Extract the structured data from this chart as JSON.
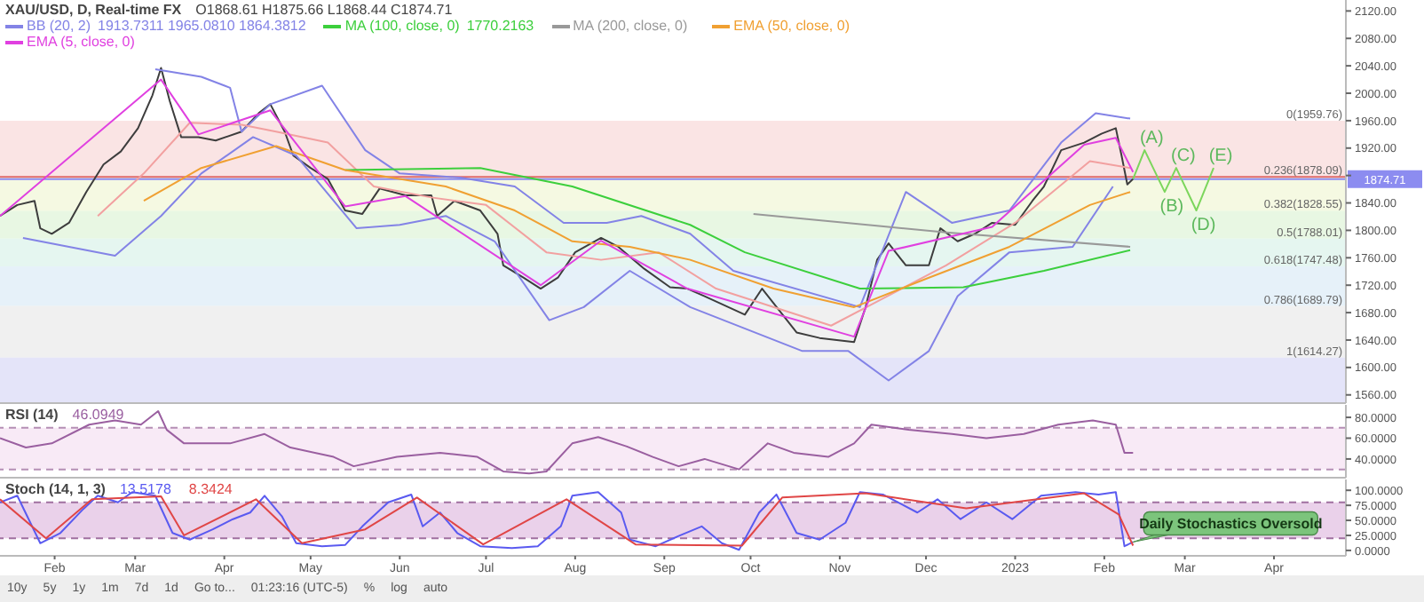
{
  "chart_data": [
    {
      "type": "line",
      "title": "XAU/USD, D, Real-time FX",
      "subtitle": "O1868.61 H1875.66 L1868.44 C1874.71",
      "legend": "top left",
      "tick_labels": "y",
      "xlim": [
        "2022-01-13",
        "2023-04-26"
      ],
      "ylim": [
        1548,
        2136
      ],
      "yticks": [
        {
          "value": 1560,
          "label": "1560.00"
        },
        {
          "value": 1600,
          "label": "1600.00"
        },
        {
          "value": 1640,
          "label": "1640.00"
        },
        {
          "value": 1680,
          "label": "1680.00"
        },
        {
          "value": 1720,
          "label": "1720.00"
        },
        {
          "value": 1760,
          "label": "1760.00"
        },
        {
          "value": 1800,
          "label": "1800.00"
        },
        {
          "value": 1840,
          "label": "1840.00"
        },
        {
          "value": 1880,
          "label": null
        },
        {
          "value": 1920,
          "label": "1920.00"
        },
        {
          "value": 1960,
          "label": "1960.00"
        },
        {
          "value": 2000,
          "label": "2000.00"
        },
        {
          "value": 2040,
          "label": "2040.00"
        },
        {
          "value": 2080,
          "label": "2080.00"
        },
        {
          "value": 2120,
          "label": "2120.00"
        }
      ],
      "bands": [
        {
          "axis": "y",
          "from": 1878.09,
          "to": 1959.76,
          "label": "0(1959.76)",
          "color": "#f7d2d2"
        },
        {
          "axis": "y",
          "from": 1828.55,
          "to": 1878.09,
          "label": "0.236(1878.09)",
          "color": "#eef5cf"
        },
        {
          "axis": "y",
          "from": 1788.01,
          "to": 1828.55,
          "label": "0.382(1828.55)",
          "color": "#d9f2d0"
        },
        {
          "axis": "y",
          "from": 1747.48,
          "to": 1788.01,
          "label": "0.5(1788.01)",
          "color": "#d4f0e6"
        },
        {
          "axis": "y",
          "from": 1689.79,
          "to": 1747.48,
          "label": "0.618(1747.48)",
          "color": "#d5e8f5"
        },
        {
          "axis": "y",
          "from": 1614.27,
          "to": 1689.79,
          "label": "0.786(1689.79)",
          "color": "#e6e6e6"
        },
        {
          "axis": "y",
          "from": 1548,
          "to": 1614.27,
          "label": "1(1614.27)",
          "color": "#d2d2f5"
        }
      ],
      "ref_lines": [
        {
          "axis": "y",
          "value": 1878.09,
          "color": "#e06a6a"
        },
        {
          "axis": "y",
          "value": 1874.71,
          "label": "1874.71",
          "color": "#8c8cf0"
        }
      ],
      "annotations": [
        "1913.7311 1965.0810 1864.3812",
        "1770.2163",
        {
          "text": "(A)",
          "x": "2023-02-15",
          "y": 1917
        },
        {
          "text": "(B)",
          "x": "2023-02-22",
          "y": 1856
        },
        {
          "text": "(C)",
          "x": "2023-02-26",
          "y": 1891
        },
        {
          "text": "(D)",
          "x": "2023-03-05",
          "y": 1829
        },
        {
          "text": "(E)",
          "x": "2023-03-11",
          "y": 1891
        }
      ],
      "series": [
        {
          "color": "#3d3d3d",
          "x": [
            "2022-01-13",
            "2022-01-19",
            "2022-01-25",
            "2022-01-27",
            "2022-01-31",
            "2022-02-06",
            "2022-02-12",
            "2022-02-18",
            "2022-02-24",
            "2022-03-02",
            "2022-03-07",
            "2022-03-10",
            "2022-03-13",
            "2022-03-17",
            "2022-03-23",
            "2022-03-29",
            "2022-04-07",
            "2022-04-13",
            "2022-04-17",
            "2022-04-22",
            "2022-04-25",
            "2022-05-01",
            "2022-05-07",
            "2022-05-13",
            "2022-05-19",
            "2022-05-25",
            "2022-06-03",
            "2022-06-12",
            "2022-06-14",
            "2022-06-20",
            "2022-06-29",
            "2022-07-05",
            "2022-07-07",
            "2022-07-14",
            "2022-07-20",
            "2022-07-26",
            "2022-08-01",
            "2022-08-10",
            "2022-08-16",
            "2022-08-25",
            "2022-09-03",
            "2022-09-09",
            "2022-09-15",
            "2022-09-29",
            "2022-10-05",
            "2022-10-17",
            "2022-10-25",
            "2022-11-06",
            "2022-11-10",
            "2022-11-14",
            "2022-11-18",
            "2022-11-24",
            "2022-12-02",
            "2022-12-06",
            "2022-12-12",
            "2022-12-18",
            "2022-12-24",
            "2023-01-01",
            "2023-01-07",
            "2023-01-11",
            "2023-01-17",
            "2023-01-25",
            "2023-01-31",
            "2023-02-05",
            "2023-02-07",
            "2023-02-09",
            "2023-02-11"
          ],
          "values": [
            1821,
            1837,
            1843,
            1803,
            1795,
            1811,
            1856,
            1896,
            1915,
            1949,
            1997,
            2037,
            1989,
            1936,
            1936,
            1931,
            1944,
            1971,
            1984,
            1944,
            1909,
            1891,
            1875,
            1829,
            1824,
            1861,
            1851,
            1851,
            1821,
            1843,
            1829,
            1795,
            1749,
            1731,
            1715,
            1731,
            1768,
            1789,
            1776,
            1744,
            1717,
            1715,
            1704,
            1677,
            1715,
            1651,
            1643,
            1637,
            1688,
            1757,
            1781,
            1749,
            1749,
            1803,
            1784,
            1795,
            1811,
            1808,
            1843,
            1864,
            1917,
            1928,
            1941,
            1949,
            1909,
            1867,
            1875
          ]
        },
        {
          "name": "BB (20, 2)",
          "color": "#8383e6",
          "x": [
            "2022-03-08",
            "2022-03-24",
            "2022-04-03",
            "2022-04-07",
            "2022-04-17",
            "2022-05-05",
            "2022-05-20",
            "2022-06-01",
            "2022-06-22",
            "2022-07-11",
            "2022-07-28",
            "2022-08-12",
            "2022-08-24",
            "2022-09-10",
            "2022-09-25",
            "2022-11-08",
            "2022-11-24",
            "2022-12-10",
            "2022-12-30",
            "2023-01-17",
            "2023-01-29",
            "2023-02-10"
          ],
          "values": [
            2035,
            2024,
            2008,
            1944,
            1984,
            2011,
            1917,
            1883,
            1877,
            1864,
            1811,
            1811,
            1821,
            1795,
            1741,
            1688,
            1856,
            1811,
            1829,
            1928,
            1971,
            1963
          ]
        },
        {
          "color": "#8383e6",
          "x": [
            "2022-01-21",
            "2022-02-22",
            "2022-03-10",
            "2022-03-24",
            "2022-04-11",
            "2022-04-26",
            "2022-05-17",
            "2022-06-01",
            "2022-06-17",
            "2022-07-04",
            "2022-07-23",
            "2022-08-04",
            "2022-08-20",
            "2022-09-10",
            "2022-10-19",
            "2022-11-04",
            "2022-11-18",
            "2022-12-02",
            "2022-12-12",
            "2022-12-30",
            "2023-01-21",
            "2023-02-04"
          ],
          "values": [
            1789,
            1763,
            1821,
            1883,
            1936,
            1909,
            1803,
            1808,
            1821,
            1784,
            1669,
            1688,
            1741,
            1688,
            1624,
            1624,
            1581,
            1624,
            1704,
            1768,
            1776,
            1864
          ]
        },
        {
          "color": "#f2a0a0",
          "x": [
            "2022-02-16",
            "2022-03-04",
            "2022-03-20",
            "2022-04-07",
            "2022-04-19",
            "2022-05-07",
            "2022-05-23",
            "2022-06-12",
            "2022-07-01",
            "2022-07-22",
            "2022-08-10",
            "2022-08-30",
            "2022-09-19",
            "2022-10-29",
            "2022-11-14",
            "2022-12-08",
            "2023-01-01",
            "2023-01-27",
            "2023-02-10"
          ],
          "values": [
            1821,
            1883,
            1957,
            1954,
            1944,
            1928,
            1864,
            1848,
            1837,
            1768,
            1757,
            1768,
            1715,
            1661,
            1696,
            1749,
            1811,
            1901,
            1891
          ]
        },
        {
          "name": "MA (100, close, 0)",
          "color": "#3ccf3c",
          "x": [
            "2022-05-13",
            "2022-06-29",
            "2022-07-31",
            "2022-09-10",
            "2022-09-29",
            "2022-11-08",
            "2022-12-14",
            "2023-01-11",
            "2023-02-10"
          ],
          "values": [
            1888,
            1891,
            1864,
            1808,
            1768,
            1715,
            1717,
            1741,
            1771
          ]
        },
        {
          "name": "MA (200, close, 0)",
          "color": "#999999",
          "x": [
            "2022-10-02",
            "2022-12-08",
            "2023-02-10"
          ],
          "values": [
            1824,
            1797,
            1776
          ]
        },
        {
          "name": "EMA (50, close, 0)",
          "color": "#f0a032",
          "x": [
            "2022-03-04",
            "2022-03-24",
            "2022-04-19",
            "2022-05-13",
            "2022-06-17",
            "2022-07-11",
            "2022-07-31",
            "2022-08-20",
            "2022-09-10",
            "2022-10-09",
            "2022-11-06",
            "2022-12-02",
            "2022-12-30",
            "2023-01-27",
            "2023-02-10"
          ],
          "values": [
            1843,
            1891,
            1923,
            1888,
            1864,
            1829,
            1784,
            1776,
            1757,
            1715,
            1688,
            1731,
            1776,
            1837,
            1856
          ]
        },
        {
          "name": "EMA (5, close, 0)",
          "color": "#e040e0",
          "x": [
            "2022-01-13",
            "2022-03-10",
            "2022-03-23",
            "2022-04-17",
            "2022-05-13",
            "2022-06-03",
            "2022-07-20",
            "2022-08-10",
            "2022-09-09",
            "2022-11-06",
            "2022-11-18",
            "2022-12-24",
            "2023-01-25",
            "2023-02-05",
            "2023-02-11"
          ],
          "values": [
            1821,
            2020,
            1940,
            1975,
            1835,
            1850,
            1720,
            1785,
            1715,
            1645,
            1770,
            1805,
            1925,
            1935,
            1885
          ]
        },
        {
          "color": "#7cd65c",
          "x": [
            "2023-02-11",
            "2023-02-15",
            "2023-02-22",
            "2023-02-26",
            "2023-03-05",
            "2023-03-11"
          ],
          "values": [
            1875,
            1917,
            1856,
            1891,
            1829,
            1891
          ]
        }
      ]
    },
    {
      "type": "line",
      "title": "RSI (14)",
      "tick_labels": "y",
      "xlim": [
        "2022-01-13",
        "2023-04-26"
      ],
      "ylim": [
        22,
        92
      ],
      "yticks": [
        {
          "value": 40,
          "label": "40.0000"
        },
        {
          "value": 60,
          "label": "60.0000"
        },
        {
          "value": 80,
          "label": "80.0000"
        }
      ],
      "bands": [
        {
          "axis": "y",
          "from": 30,
          "to": 70,
          "color": "#f3dcf0"
        }
      ],
      "ref_lines": [
        {
          "axis": "y",
          "value": 70,
          "color": "#b58fb5",
          "line_style": "dashed"
        },
        {
          "axis": "y",
          "value": 30,
          "color": "#b58fb5",
          "line_style": "dashed"
        }
      ],
      "annotations": [
        "46.0949"
      ],
      "series": [
        {
          "color": "#9a5fa0",
          "x": [
            "2022-01-13",
            "2022-01-22",
            "2022-01-31",
            "2022-02-13",
            "2022-02-22",
            "2022-03-03",
            "2022-03-09",
            "2022-03-12",
            "2022-03-18",
            "2022-04-03",
            "2022-04-15",
            "2022-04-24",
            "2022-05-09",
            "2022-05-16",
            "2022-05-31",
            "2022-06-15",
            "2022-06-28",
            "2022-07-07",
            "2022-07-16",
            "2022-07-22",
            "2022-07-31",
            "2022-08-09",
            "2022-08-19",
            "2022-08-28",
            "2022-09-06",
            "2022-09-15",
            "2022-09-27",
            "2022-10-07",
            "2022-10-16",
            "2022-10-28",
            "2022-11-06",
            "2022-11-12",
            "2022-11-25",
            "2022-12-10",
            "2022-12-22",
            "2023-01-04",
            "2023-01-16",
            "2023-01-28",
            "2023-02-05",
            "2023-02-08",
            "2023-02-11"
          ],
          "values": [
            60,
            51,
            55,
            73,
            77,
            73,
            86,
            68,
            55,
            55,
            64,
            51,
            42,
            33,
            42,
            46,
            42,
            28,
            26,
            28,
            55,
            61,
            52,
            42,
            33,
            40,
            30,
            55,
            46,
            42,
            55,
            73,
            68,
            64,
            60,
            64,
            73,
            77,
            73,
            46,
            46
          ]
        }
      ]
    },
    {
      "type": "line",
      "title": "Stoch (14, 1, 3)",
      "xlim": [
        "2022-01-13",
        "2023-04-26"
      ],
      "ylim": [
        -9,
        118
      ],
      "yticks": [
        {
          "value": 0,
          "label": "0.0000"
        },
        {
          "value": 25,
          "label": "25.0000"
        },
        {
          "value": 50,
          "label": "50.0000"
        },
        {
          "value": 75,
          "label": "75.0000"
        },
        {
          "value": 100,
          "label": "100.0000"
        }
      ],
      "xticks": [
        {
          "value": "2022-02-01",
          "label": "Feb"
        },
        {
          "value": "2022-03-01",
          "label": "Mar"
        },
        {
          "value": "2022-04-01",
          "label": "Apr"
        },
        {
          "value": "2022-05-01",
          "label": "May"
        },
        {
          "value": "2022-06-01",
          "label": "Jun"
        },
        {
          "value": "2022-07-01",
          "label": "Jul"
        },
        {
          "value": "2022-08-01",
          "label": "Aug"
        },
        {
          "value": "2022-09-01",
          "label": "Sep"
        },
        {
          "value": "2022-10-01",
          "label": "Oct"
        },
        {
          "value": "2022-11-01",
          "label": "Nov"
        },
        {
          "value": "2022-12-01",
          "label": "Dec"
        },
        {
          "value": "2023-01-01",
          "label": "2023"
        },
        {
          "value": "2023-02-01",
          "label": "Feb"
        },
        {
          "value": "2023-03-01",
          "label": "Mar"
        },
        {
          "value": "2023-04-01",
          "label": "Apr"
        }
      ],
      "bands": [
        {
          "axis": "y",
          "from": 20,
          "to": 80,
          "color": "#dcb2dc"
        }
      ],
      "ref_lines": [
        {
          "axis": "y",
          "value": 80,
          "color": "#a070a0",
          "line_style": "dashed"
        },
        {
          "axis": "y",
          "value": 20,
          "color": "#a070a0",
          "line_style": "dashed"
        }
      ],
      "annotations": [
        "13.5178",
        "8.3424",
        {
          "text": "Daily Stochastics Oversold",
          "x": "2023-02-11",
          "y": 14
        }
      ],
      "series": [
        {
          "color": "#5a5af0",
          "x": [
            "2022-01-13",
            "2022-01-19",
            "2022-01-27",
            "2022-02-03",
            "2022-02-11",
            "2022-02-16",
            "2022-02-23",
            "2022-02-28",
            "2022-03-08",
            "2022-03-14",
            "2022-03-20",
            "2022-03-28",
            "2022-04-04",
            "2022-04-10",
            "2022-04-15",
            "2022-04-21",
            "2022-04-26",
            "2022-05-05",
            "2022-05-13",
            "2022-05-19",
            "2022-05-28",
            "2022-06-05",
            "2022-06-09",
            "2022-06-15",
            "2022-06-21",
            "2022-06-29",
            "2022-07-10",
            "2022-07-19",
            "2022-07-27",
            "2022-07-31",
            "2022-08-09",
            "2022-08-17",
            "2022-08-20",
            "2022-08-29",
            "2022-09-06",
            "2022-09-14",
            "2022-09-21",
            "2022-09-27",
            "2022-10-04",
            "2022-10-10",
            "2022-10-17",
            "2022-10-25",
            "2022-11-03",
            "2022-11-08",
            "2022-11-16",
            "2022-11-28",
            "2022-12-05",
            "2022-12-13",
            "2022-12-22",
            "2022-12-31",
            "2023-01-10",
            "2023-01-22",
            "2023-01-30",
            "2023-02-05",
            "2023-02-08",
            "2023-02-11"
          ],
          "values": [
            80,
            91,
            12,
            29,
            69,
            91,
            80,
            97,
            91,
            29,
            18,
            35,
            52,
            63,
            91,
            57,
            12,
            7,
            9,
            40,
            80,
            93,
            40,
            63,
            29,
            7,
            4,
            7,
            40,
            91,
            97,
            63,
            18,
            7,
            24,
            40,
            12,
            1,
            63,
            93,
            29,
            18,
            46,
            97,
            93,
            63,
            85,
            52,
            80,
            52,
            91,
            97,
            93,
            97,
            7,
            14
          ]
        },
        {
          "color": "#e04646",
          "x": [
            "2022-01-13",
            "2022-01-29",
            "2022-02-14",
            "2022-03-10",
            "2022-03-18",
            "2022-04-12",
            "2022-04-28",
            "2022-05-20",
            "2022-06-07",
            "2022-06-30",
            "2022-07-29",
            "2022-08-22",
            "2022-09-28",
            "2022-10-12",
            "2022-11-10",
            "2022-12-15",
            "2023-01-25",
            "2023-02-06",
            "2023-02-11"
          ],
          "values": [
            85,
            20,
            85,
            90,
            25,
            85,
            12,
            35,
            88,
            10,
            85,
            10,
            8,
            88,
            95,
            70,
            95,
            60,
            8
          ]
        }
      ]
    },
    {
      "type": "other",
      "annotations": [
        "10y",
        "5y",
        "1y",
        "1m",
        "7d",
        "1d",
        "Go to...",
        "01:23:16 (UTC-5)",
        "%",
        "log",
        "auto"
      ]
    }
  ]
}
